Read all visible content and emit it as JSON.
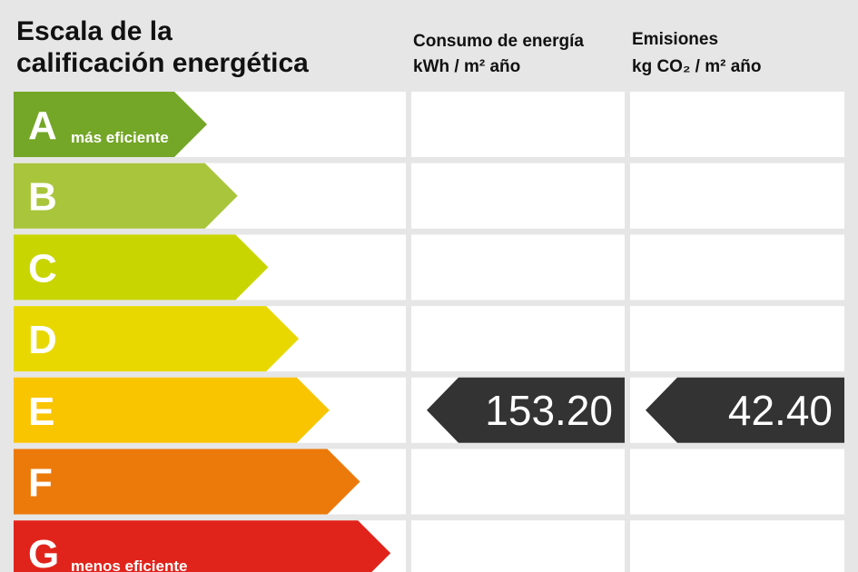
{
  "header": {
    "title_lines": [
      "Escala de la",
      "calificación energética"
    ],
    "consumption": {
      "title": "Consumo de energía",
      "unit": "kWh / m² año"
    },
    "emissions": {
      "title": "Emisiones",
      "unit": "kg CO₂ / m² año"
    }
  },
  "rows": [
    {
      "letter": "A",
      "label": "más eficiente",
      "color": "#74a627"
    },
    {
      "letter": "B",
      "color": "#a9c53c"
    },
    {
      "letter": "C",
      "color": "#c9d500"
    },
    {
      "letter": "D",
      "color": "#e8d800"
    },
    {
      "letter": "E",
      "color": "#f9c400",
      "consumption": "153.20",
      "emissions": "42.40"
    },
    {
      "letter": "F",
      "color": "#ec7a0b"
    },
    {
      "letter": "G",
      "label": "menos eficiente",
      "color": "#e1241b"
    }
  ]
}
